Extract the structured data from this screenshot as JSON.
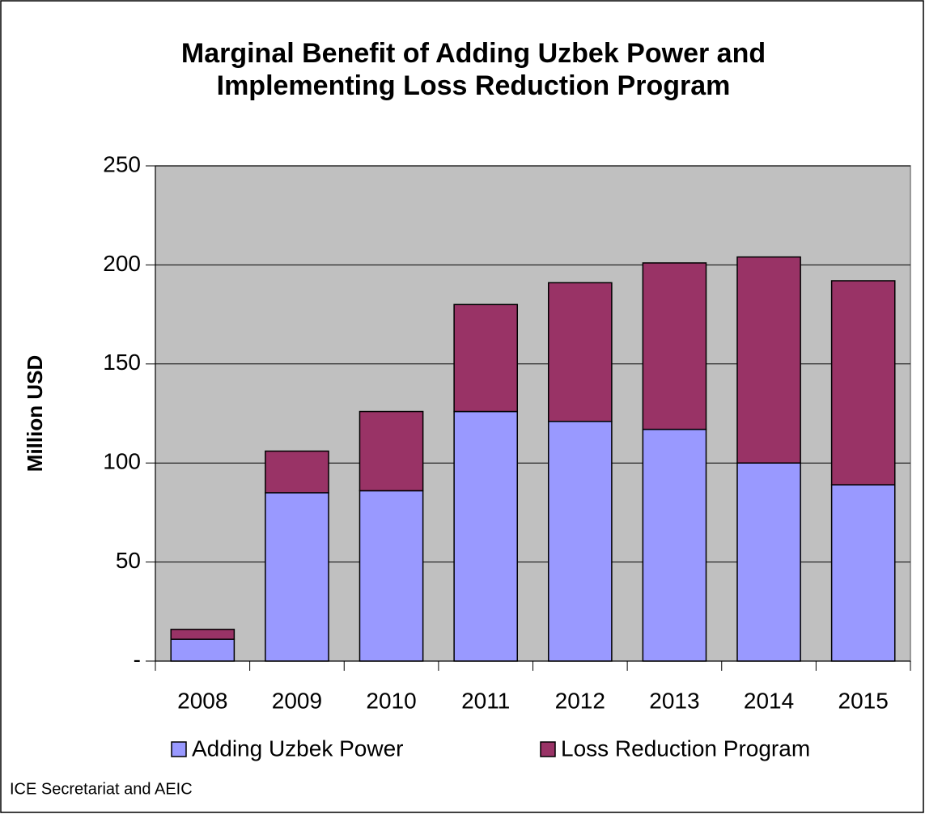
{
  "chart_data": {
    "type": "stacked_bar",
    "title": "Marginal Benefit of Adding Uzbek Power and Implementing Loss Reduction Program",
    "ylabel": "Million USD",
    "source": "ICE Secretariat and AEIC",
    "categories": [
      "2008",
      "2009",
      "2010",
      "2011",
      "2012",
      "2013",
      "2014",
      "2015"
    ],
    "series": [
      {
        "name": "Adding Uzbek Power",
        "color": "#9999ff",
        "values": [
          11,
          85,
          86,
          126,
          121,
          117,
          100,
          89
        ]
      },
      {
        "name": "Loss Reduction Program",
        "color": "#993366",
        "values": [
          5,
          21,
          40,
          54,
          70,
          84,
          104,
          103
        ]
      }
    ],
    "ylim": [
      0,
      250
    ],
    "yticks": [
      {
        "value": 0,
        "label": "-"
      },
      50,
      100,
      150,
      200,
      250
    ],
    "grid": true,
    "plot_background": "#c0c0c0",
    "legend": "bottom"
  }
}
